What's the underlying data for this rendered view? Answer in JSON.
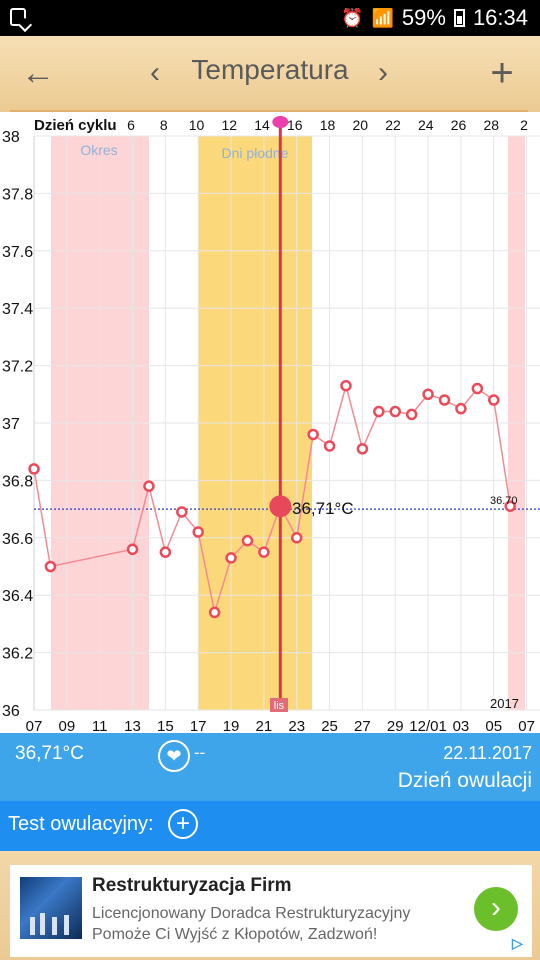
{
  "status_bar": {
    "battery": "59%",
    "time": "16:34"
  },
  "toolbar": {
    "title": "Temperatura",
    "back": "←",
    "prev": "‹",
    "next": "›",
    "add": "+"
  },
  "chart_data": {
    "type": "line",
    "top_axis_label": "Dzień cyklu",
    "cycle_days": [
      "6",
      "8",
      "10",
      "12",
      "14",
      "16",
      "18",
      "20",
      "22",
      "24",
      "26",
      "28",
      "2"
    ],
    "dates": [
      "07",
      "09",
      "11",
      "13",
      "15",
      "17",
      "19",
      "21",
      "23",
      "25",
      "27",
      "29",
      "12/01",
      "03",
      "05",
      "07"
    ],
    "y_ticks": [
      "38",
      "37.8",
      "37.6",
      "37.4",
      "37.2",
      "37",
      "36.8",
      "36.6",
      "36.4",
      "36.2",
      "36"
    ],
    "ylim": [
      36,
      38
    ],
    "period_label": "Okres",
    "fertile_label": "Dni płodne",
    "coverline_value": "36.70",
    "selected_label": "36,71°C",
    "ovulation_marker": "lis",
    "year_label": "2017",
    "points": [
      {
        "day": 0,
        "t": 36.84
      },
      {
        "day": 1,
        "t": 36.5
      },
      {
        "day": 6,
        "t": 36.56
      },
      {
        "day": 7,
        "t": 36.78
      },
      {
        "day": 8,
        "t": 36.55
      },
      {
        "day": 9,
        "t": 36.69
      },
      {
        "day": 10,
        "t": 36.62
      },
      {
        "day": 11,
        "t": 36.34
      },
      {
        "day": 12,
        "t": 36.53
      },
      {
        "day": 13,
        "t": 36.59
      },
      {
        "day": 14,
        "t": 36.55
      },
      {
        "day": 15,
        "t": 36.71
      },
      {
        "day": 16,
        "t": 36.6
      },
      {
        "day": 17,
        "t": 36.96
      },
      {
        "day": 18,
        "t": 36.92
      },
      {
        "day": 19,
        "t": 37.13
      },
      {
        "day": 20,
        "t": 36.91
      },
      {
        "day": 21,
        "t": 37.04
      },
      {
        "day": 22,
        "t": 37.04
      },
      {
        "day": 23,
        "t": 37.03
      },
      {
        "day": 24,
        "t": 37.1
      },
      {
        "day": 25,
        "t": 37.08
      },
      {
        "day": 26,
        "t": 37.05
      },
      {
        "day": 27,
        "t": 37.12
      },
      {
        "day": 28,
        "t": 37.08
      },
      {
        "day": 29,
        "t": 36.71
      }
    ]
  },
  "info": {
    "temp": "36,71°C",
    "heart_value": "--",
    "date": "22.11.2017",
    "status": "Dzień owulacji"
  },
  "test": {
    "label": "Test owulacyjny:",
    "plus": "+"
  },
  "ad": {
    "title": "Restrukturyzacja Firm",
    "line1": "Licencjonowany Doradca Restrukturyzacyjny",
    "line2": "Pomoże Ci Wyjść z Kłopotów, Zadzwoń!"
  }
}
